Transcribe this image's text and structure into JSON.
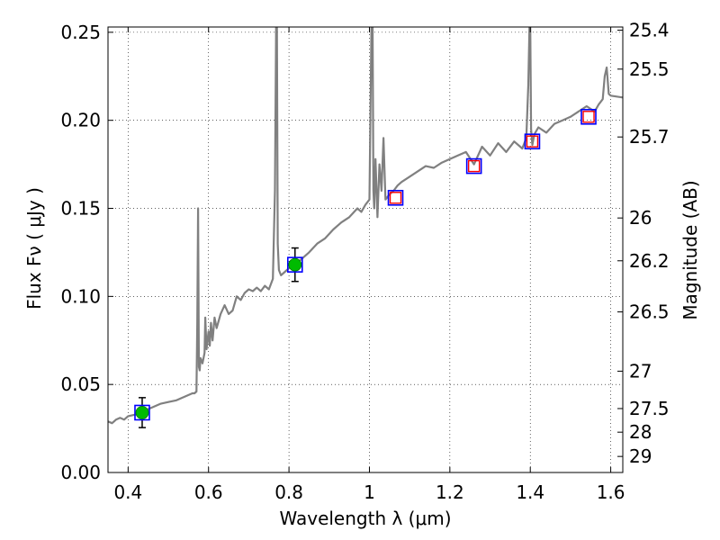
{
  "chart_data": {
    "type": "line",
    "xlabel": "Wavelength  λ (μm)",
    "ylabel_left": "Flux  Fν  ( μJy )",
    "ylabel_right": "Magnitude (AB)",
    "xlim": [
      0.35,
      1.63
    ],
    "ylim": [
      0.0,
      0.253
    ],
    "grid": true,
    "x_ticks": [
      0.4,
      0.6,
      0.8,
      1.0,
      1.2,
      1.4,
      1.6
    ],
    "x_tick_labels": [
      "0.4",
      "0.6",
      "0.8",
      "1",
      "1.2",
      "1.4",
      "1.6"
    ],
    "y_ticks": [
      0.0,
      0.05,
      0.1,
      0.15,
      0.2,
      0.25
    ],
    "y_tick_labels": [
      "0.00",
      "0.05",
      "0.10",
      "0.15",
      "0.20",
      "0.25"
    ],
    "mag_ticks": [
      25.4,
      25.5,
      25.7,
      26,
      26.2,
      26.5,
      27,
      27.5,
      28,
      29
    ],
    "mag_tick_labels": [
      "25.4",
      "25.5",
      "25.7",
      "26",
      "26.2",
      "26.5",
      "27",
      "27.5",
      "28",
      "29"
    ],
    "series": [
      {
        "style": "line",
        "color": "#808080",
        "x": [
          0.35,
          0.36,
          0.37,
          0.38,
          0.39,
          0.4,
          0.42,
          0.44,
          0.46,
          0.48,
          0.5,
          0.52,
          0.54,
          0.56,
          0.565,
          0.57,
          0.572,
          0.574,
          0.576,
          0.578,
          0.58,
          0.585,
          0.59,
          0.592,
          0.595,
          0.6,
          0.603,
          0.606,
          0.61,
          0.615,
          0.62,
          0.63,
          0.64,
          0.65,
          0.66,
          0.67,
          0.68,
          0.69,
          0.7,
          0.71,
          0.72,
          0.73,
          0.74,
          0.75,
          0.76,
          0.765,
          0.768,
          0.77,
          0.772,
          0.775,
          0.78,
          0.79,
          0.8,
          0.81,
          0.82,
          0.83,
          0.85,
          0.87,
          0.89,
          0.91,
          0.93,
          0.95,
          0.97,
          0.98,
          0.99,
          1.0,
          1.005,
          1.008,
          1.01,
          1.012,
          1.015,
          1.02,
          1.025,
          1.03,
          1.035,
          1.04,
          1.05,
          1.06,
          1.07,
          1.08,
          1.1,
          1.12,
          1.14,
          1.16,
          1.18,
          1.2,
          1.22,
          1.24,
          1.26,
          1.28,
          1.3,
          1.32,
          1.34,
          1.36,
          1.38,
          1.39,
          1.395,
          1.398,
          1.4,
          1.402,
          1.405,
          1.41,
          1.42,
          1.44,
          1.46,
          1.48,
          1.5,
          1.52,
          1.54,
          1.56,
          1.57,
          1.58,
          1.585,
          1.59,
          1.595,
          1.6,
          1.63
        ],
        "y": [
          0.029,
          0.028,
          0.03,
          0.031,
          0.03,
          0.032,
          0.033,
          0.035,
          0.037,
          0.039,
          0.04,
          0.041,
          0.043,
          0.045,
          0.045,
          0.046,
          0.085,
          0.15,
          0.06,
          0.058,
          0.065,
          0.062,
          0.068,
          0.088,
          0.07,
          0.08,
          0.072,
          0.085,
          0.075,
          0.088,
          0.082,
          0.09,
          0.095,
          0.09,
          0.092,
          0.1,
          0.098,
          0.102,
          0.104,
          0.103,
          0.105,
          0.103,
          0.106,
          0.104,
          0.11,
          0.16,
          0.253,
          0.253,
          0.13,
          0.115,
          0.112,
          0.114,
          0.116,
          0.118,
          0.119,
          0.121,
          0.125,
          0.13,
          0.133,
          0.138,
          0.142,
          0.145,
          0.15,
          0.148,
          0.152,
          0.155,
          0.253,
          0.253,
          0.16,
          0.15,
          0.178,
          0.145,
          0.175,
          0.16,
          0.19,
          0.155,
          0.158,
          0.16,
          0.163,
          0.165,
          0.168,
          0.171,
          0.174,
          0.173,
          0.176,
          0.178,
          0.18,
          0.182,
          0.175,
          0.185,
          0.18,
          0.187,
          0.182,
          0.188,
          0.184,
          0.19,
          0.22,
          0.253,
          0.253,
          0.195,
          0.186,
          0.192,
          0.196,
          0.193,
          0.198,
          0.2,
          0.202,
          0.205,
          0.208,
          0.205,
          0.209,
          0.212,
          0.225,
          0.23,
          0.215,
          0.214,
          0.213
        ]
      },
      {
        "style": "open-square",
        "color": "#0000ff",
        "x": [
          0.435,
          0.815,
          1.065,
          1.26,
          1.405,
          1.545
        ],
        "y": [
          0.034,
          0.118,
          0.156,
          0.174,
          0.188,
          0.202
        ]
      },
      {
        "style": "open-square-small",
        "color": "#ff0000",
        "x": [
          1.065,
          1.26,
          1.405,
          1.545
        ],
        "y": [
          0.156,
          0.174,
          0.188,
          0.202
        ]
      },
      {
        "style": "filled-circle-errorbar",
        "color": "#00bb00",
        "x": [
          0.435,
          0.815
        ],
        "y": [
          0.034,
          0.118
        ],
        "yerr": [
          0.0085,
          0.0095
        ]
      }
    ]
  }
}
